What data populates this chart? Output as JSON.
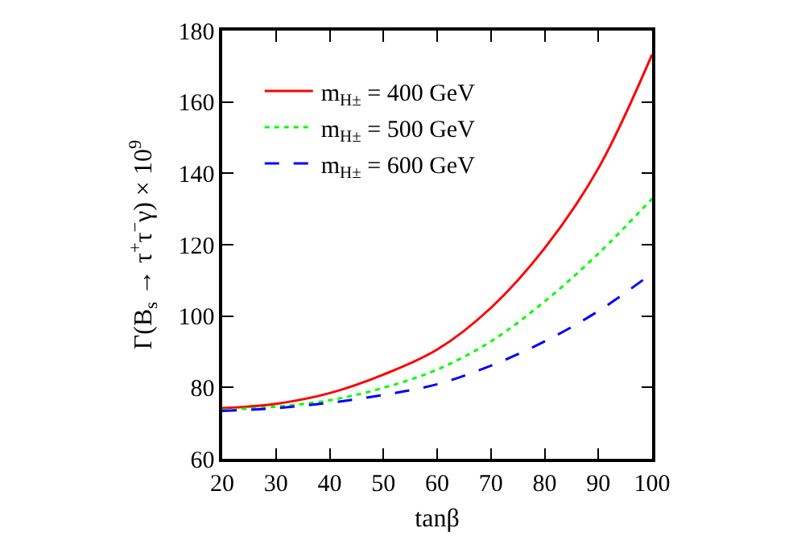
{
  "chart_data": {
    "type": "line",
    "xlabel": "tanβ",
    "ylabel": "Γ(B$_{s}$ → τ$^{+}$τ$^{−}$γ) × 10$^{9}$",
    "x": [
      20,
      30,
      40,
      50,
      60,
      70,
      80,
      90,
      100
    ],
    "series": [
      {
        "name": "m$_{H±}$ = 400 GeV",
        "color": "#ff0000",
        "line_style": "solid",
        "values": [
          74.2,
          75.4,
          78.4,
          83.6,
          90.6,
          102.3,
          119,
          141.4,
          173.3
        ]
      },
      {
        "name": "m$_{H±}$ = 500 GeV",
        "color": "#00ff00",
        "line_style": "dotted",
        "values": [
          73.7,
          74.6,
          76.4,
          79.9,
          85,
          92.9,
          104.1,
          117.5,
          132.9
        ]
      },
      {
        "name": "m$_{H±}$ = 600 GeV",
        "color": "#0000ff",
        "line_style": "dashed",
        "values": [
          73.4,
          74.2,
          75.7,
          77.9,
          80.9,
          86.1,
          92.9,
          101.4,
          112
        ]
      }
    ],
    "xlim": [
      20,
      100
    ],
    "xticks": [
      20,
      30,
      40,
      50,
      60,
      70,
      80,
      90,
      100
    ],
    "ylim": [
      60,
      180
    ],
    "yticks": [
      60,
      80,
      100,
      120,
      140,
      160,
      180
    ],
    "grid": false,
    "legend": "top left",
    "marker": "none"
  }
}
